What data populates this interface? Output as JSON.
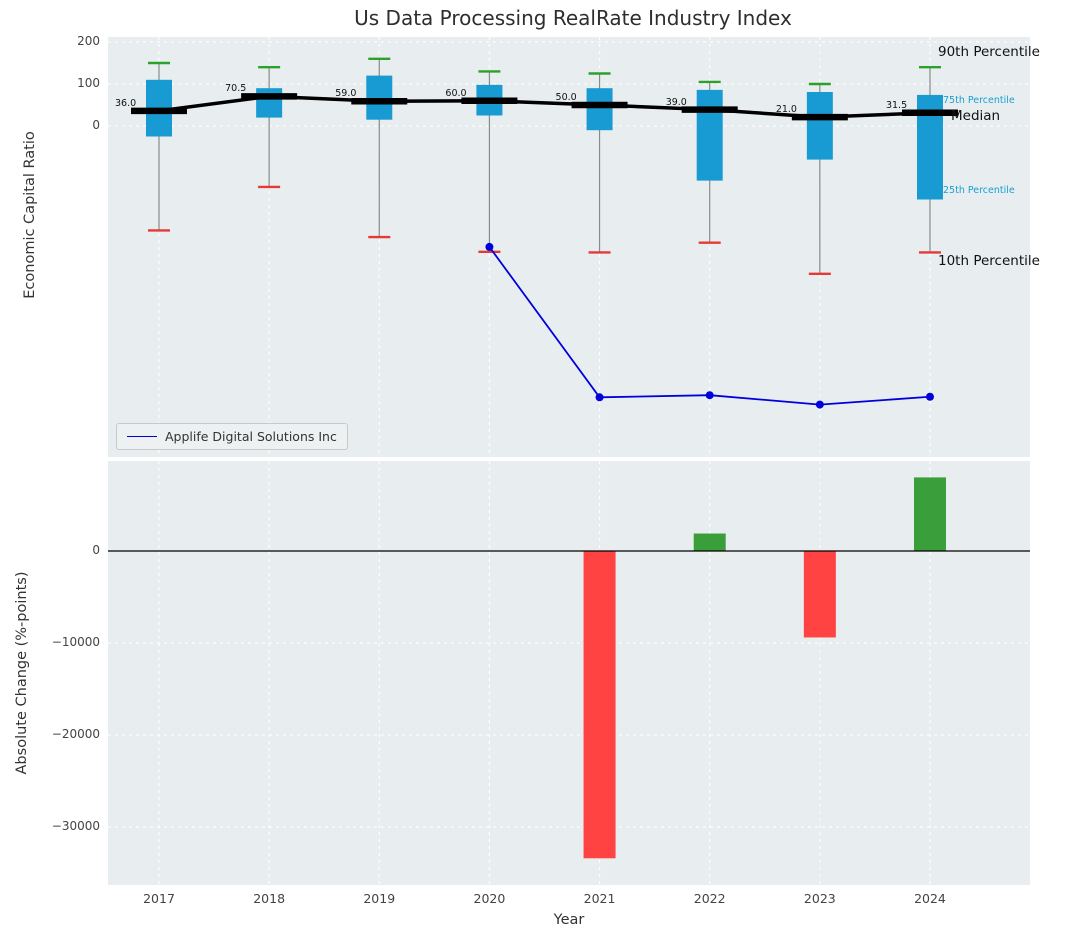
{
  "figure": {
    "title": "Us Data Processing RealRate Industry Index"
  },
  "colors": {
    "plot_bg": "#e8eef0",
    "grid": "#ffffff",
    "box_fill": "#189ad3",
    "cap_90th": "#2ca02c",
    "cap_10th": "#e53935",
    "whisker": "#8a8a8a",
    "median_line": "#000000",
    "company_line": "#0000dd",
    "bar_positive": "#3a9e3a",
    "bar_negative": "#ff4343",
    "percentile_label_blue": "#1a9fd0"
  },
  "top_plot": {
    "ylabel": "Economic Capital Ratio",
    "ytick_labels": [
      "200",
      "100",
      "0"
    ],
    "legend": {
      "label": "Applife Digital Solutions Inc"
    },
    "annotations": {
      "p90": "90th Percentile",
      "p75": "75th Percentile",
      "median": "Median",
      "p25": "25th Percentile",
      "p10": "10th Percentile"
    }
  },
  "bottom_plot": {
    "ylabel": "Absolute Change (%-points)",
    "xlabel": "Year",
    "ytick_labels": [
      "0",
      "−10000",
      "−20000",
      "−30000"
    ]
  },
  "chart_data": [
    {
      "type": "boxplot+line",
      "title": "Us Data Processing RealRate Industry Index",
      "ylabel": "Economic Capital Ratio",
      "x": [
        2017,
        2018,
        2019,
        2020,
        2021,
        2022,
        2023,
        2024
      ],
      "yticks": [
        200,
        100,
        0
      ],
      "y_scale": "symlog-like (linear above -200, log-compressed below; values below 0 unlabeled)",
      "series": [
        {
          "name": "90th Percentile",
          "values": [
            150,
            140,
            160,
            130,
            125,
            105,
            100,
            140
          ]
        },
        {
          "name": "75th Percentile",
          "values": [
            110,
            90,
            120,
            98,
            90,
            86,
            81,
            74
          ]
        },
        {
          "name": "Median",
          "values": [
            36.0,
            70.5,
            59.0,
            60.0,
            50.0,
            39.0,
            21.0,
            31.5
          ]
        },
        {
          "name": "25th Percentile",
          "values": [
            -25,
            20,
            15,
            25,
            -10,
            -130,
            -80,
            -175
          ]
        },
        {
          "name": "10th Percentile",
          "values": [
            -350,
            -145,
            -420,
            -630,
            -640,
            -490,
            -1150,
            -640
          ]
        },
        {
          "name": "Applife Digital Solutions Inc",
          "values": [
            null,
            null,
            null,
            -550,
            -33950,
            -32050,
            -41450,
            -33450
          ]
        }
      ],
      "median_point_labels": [
        "36.0",
        "70.5",
        "59.0",
        "60.0",
        "50.0",
        "39.0",
        "21.0",
        "31.5"
      ],
      "legend_position": "lower left"
    },
    {
      "type": "bar",
      "ylabel": "Absolute Change (%-points)",
      "xlabel": "Year",
      "categories": [
        2017,
        2018,
        2019,
        2020,
        2021,
        2022,
        2023,
        2024
      ],
      "values": [
        0,
        0,
        0,
        0,
        -33400,
        1900,
        -9400,
        8000
      ],
      "yticks": [
        0,
        -10000,
        -20000,
        -30000
      ],
      "ylim": [
        -36300,
        9800
      ],
      "bar_color_rule": "green if positive, red if negative"
    }
  ]
}
